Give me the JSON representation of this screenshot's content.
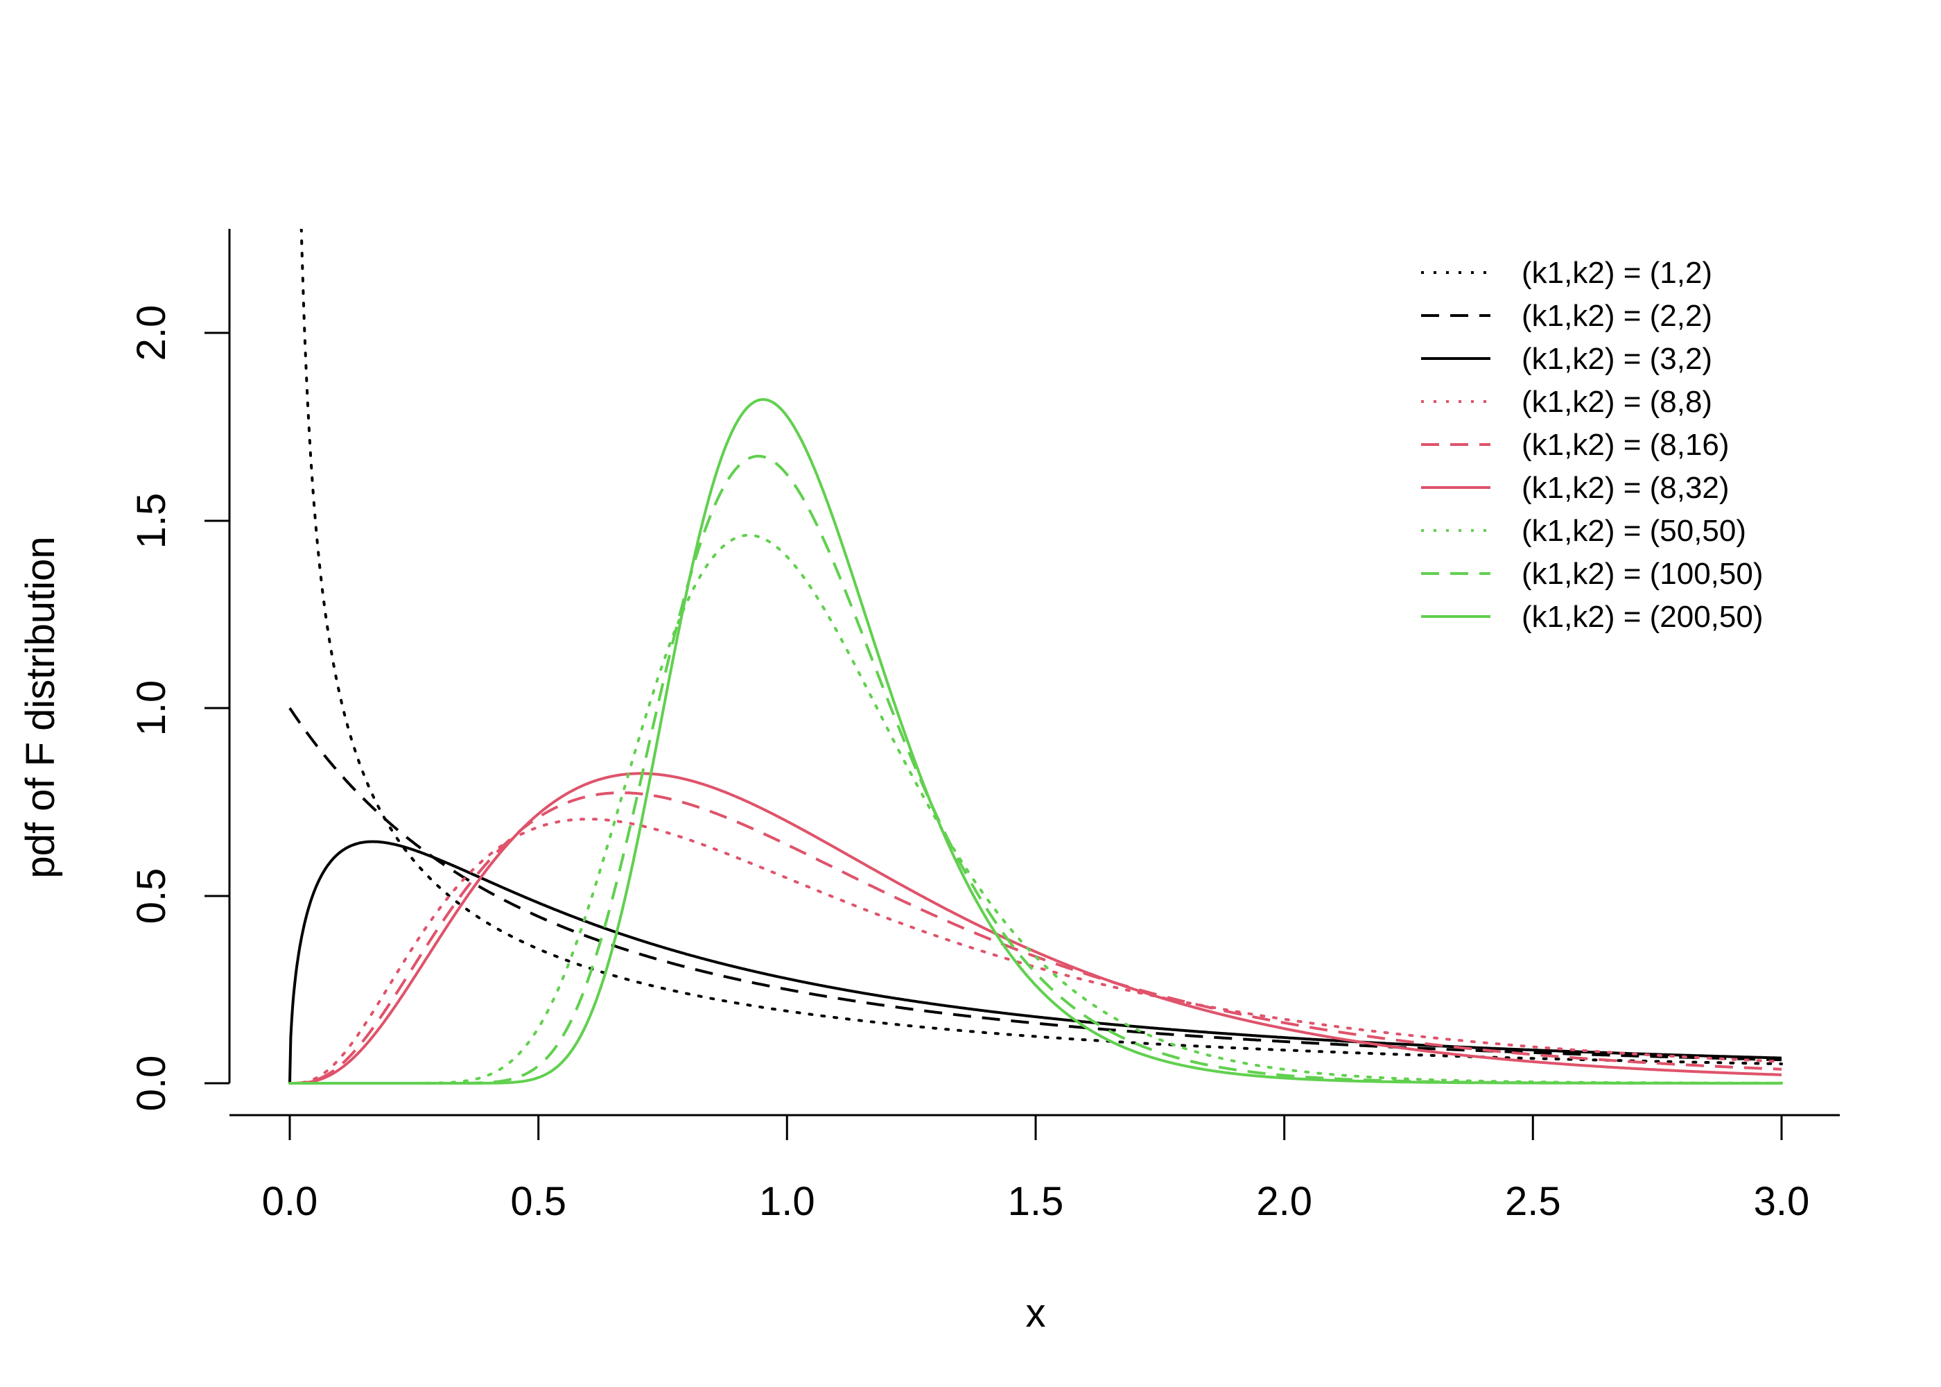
{
  "chart_data": {
    "type": "line",
    "title": "",
    "xlabel": "x",
    "ylabel": "pdf of F distribution",
    "xlim": [
      0,
      3
    ],
    "ylim": [
      0,
      2.25
    ],
    "xticks": [
      "0.0",
      "0.5",
      "1.0",
      "1.5",
      "2.0",
      "2.5",
      "3.0"
    ],
    "yticks": [
      "0.0",
      "0.5",
      "1.0",
      "1.5",
      "2.0"
    ],
    "grid": false,
    "legend_position": "top-right",
    "colors": {
      "black": "#000000",
      "red": "#DF536B",
      "green": "#61D04F"
    },
    "series": [
      {
        "name": "(k1,k2) = (1,2)",
        "k1": 1,
        "k2": 2,
        "color": "#000000",
        "dash": "dotted"
      },
      {
        "name": "(k1,k2) = (2,2)",
        "k1": 2,
        "k2": 2,
        "color": "#000000",
        "dash": "dashed"
      },
      {
        "name": "(k1,k2) = (3,2)",
        "k1": 3,
        "k2": 2,
        "color": "#000000",
        "dash": "solid"
      },
      {
        "name": "(k1,k2) = (8,8)",
        "k1": 8,
        "k2": 8,
        "color": "#DF536B",
        "dash": "dotted"
      },
      {
        "name": "(k1,k2) = (8,16)",
        "k1": 8,
        "k2": 16,
        "color": "#DF536B",
        "dash": "dashed"
      },
      {
        "name": "(k1,k2) = (8,32)",
        "k1": 8,
        "k2": 32,
        "color": "#DF536B",
        "dash": "solid"
      },
      {
        "name": "(k1,k2) = (50,50)",
        "k1": 50,
        "k2": 50,
        "color": "#61D04F",
        "dash": "dotted"
      },
      {
        "name": "(k1,k2) = (100,50)",
        "k1": 100,
        "k2": 50,
        "color": "#61D04F",
        "dash": "dashed"
      },
      {
        "name": "(k1,k2) = (200,50)",
        "k1": 200,
        "k2": 50,
        "color": "#61D04F",
        "dash": "solid"
      }
    ]
  }
}
